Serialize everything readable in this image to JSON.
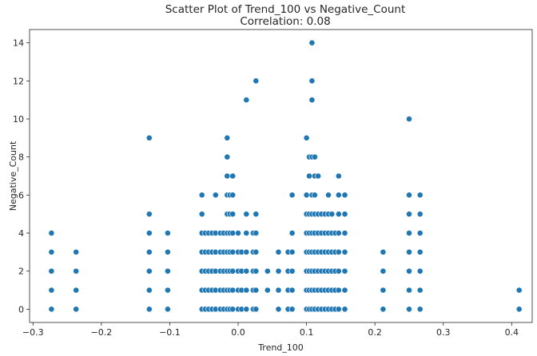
{
  "chart_data": {
    "type": "scatter",
    "title": "Scatter Plot of Trend_100 vs Negative_Count",
    "subtitle": "Correlation: 0.08",
    "xlabel": "Trend_100",
    "ylabel": "Negative_Count",
    "xlim": [
      -0.305,
      0.43
    ],
    "ylim": [
      -0.7,
      14.7
    ],
    "grid": false,
    "x_ticks": [
      {
        "value": -0.3,
        "label": "−0.3"
      },
      {
        "value": -0.2,
        "label": "−0.2"
      },
      {
        "value": -0.1,
        "label": "−0.1"
      },
      {
        "value": 0.0,
        "label": "0.0"
      },
      {
        "value": 0.1,
        "label": "0.1"
      },
      {
        "value": 0.2,
        "label": "0.2"
      },
      {
        "value": 0.3,
        "label": "0.3"
      },
      {
        "value": 0.4,
        "label": "0.4"
      }
    ],
    "y_ticks": [
      0,
      2,
      4,
      6,
      8,
      10,
      12,
      14
    ],
    "marker_color": "#1f77b4",
    "marker_edge": "#ffffff",
    "points": [
      [
        -0.273,
        0
      ],
      [
        -0.273,
        1
      ],
      [
        -0.273,
        2
      ],
      [
        -0.273,
        3
      ],
      [
        -0.273,
        4
      ],
      [
        -0.237,
        0
      ],
      [
        -0.237,
        1
      ],
      [
        -0.237,
        2
      ],
      [
        -0.237,
        3
      ],
      [
        -0.13,
        0
      ],
      [
        -0.13,
        1
      ],
      [
        -0.13,
        2
      ],
      [
        -0.13,
        3
      ],
      [
        -0.13,
        4
      ],
      [
        -0.13,
        5
      ],
      [
        -0.13,
        9
      ],
      [
        -0.103,
        0
      ],
      [
        -0.103,
        1
      ],
      [
        -0.103,
        2
      ],
      [
        -0.103,
        3
      ],
      [
        -0.103,
        4
      ],
      [
        -0.053,
        0
      ],
      [
        -0.053,
        1
      ],
      [
        -0.053,
        2
      ],
      [
        -0.053,
        3
      ],
      [
        -0.053,
        4
      ],
      [
        -0.053,
        5
      ],
      [
        -0.053,
        6
      ],
      [
        -0.048,
        0
      ],
      [
        -0.048,
        1
      ],
      [
        -0.048,
        2
      ],
      [
        -0.048,
        3
      ],
      [
        -0.048,
        4
      ],
      [
        -0.043,
        0
      ],
      [
        -0.043,
        1
      ],
      [
        -0.043,
        2
      ],
      [
        -0.043,
        3
      ],
      [
        -0.043,
        4
      ],
      [
        -0.038,
        0
      ],
      [
        -0.038,
        1
      ],
      [
        -0.038,
        2
      ],
      [
        -0.038,
        3
      ],
      [
        -0.038,
        4
      ],
      [
        -0.033,
        0
      ],
      [
        -0.033,
        1
      ],
      [
        -0.033,
        2
      ],
      [
        -0.033,
        3
      ],
      [
        -0.033,
        4
      ],
      [
        -0.033,
        6
      ],
      [
        -0.026,
        0
      ],
      [
        -0.026,
        1
      ],
      [
        -0.026,
        2
      ],
      [
        -0.026,
        3
      ],
      [
        -0.026,
        4
      ],
      [
        -0.021,
        0
      ],
      [
        -0.021,
        1
      ],
      [
        -0.021,
        2
      ],
      [
        -0.021,
        3
      ],
      [
        -0.021,
        4
      ],
      [
        -0.016,
        0
      ],
      [
        -0.016,
        1
      ],
      [
        -0.016,
        2
      ],
      [
        -0.016,
        3
      ],
      [
        -0.016,
        4
      ],
      [
        -0.016,
        5
      ],
      [
        -0.016,
        6
      ],
      [
        -0.016,
        7
      ],
      [
        -0.016,
        8
      ],
      [
        -0.016,
        9
      ],
      [
        -0.012,
        0
      ],
      [
        -0.012,
        1
      ],
      [
        -0.012,
        2
      ],
      [
        -0.012,
        3
      ],
      [
        -0.012,
        4
      ],
      [
        -0.012,
        5
      ],
      [
        -0.012,
        6
      ],
      [
        -0.008,
        0
      ],
      [
        -0.008,
        1
      ],
      [
        -0.008,
        2
      ],
      [
        -0.008,
        3
      ],
      [
        -0.008,
        4
      ],
      [
        -0.008,
        5
      ],
      [
        -0.008,
        6
      ],
      [
        -0.008,
        7
      ],
      [
        0.0,
        0
      ],
      [
        0.0,
        1
      ],
      [
        0.0,
        2
      ],
      [
        0.0,
        3
      ],
      [
        0.0,
        4
      ],
      [
        0.005,
        0
      ],
      [
        0.005,
        1
      ],
      [
        0.005,
        2
      ],
      [
        0.005,
        3
      ],
      [
        0.012,
        0
      ],
      [
        0.012,
        1
      ],
      [
        0.012,
        2
      ],
      [
        0.012,
        3
      ],
      [
        0.012,
        4
      ],
      [
        0.012,
        5
      ],
      [
        0.012,
        11
      ],
      [
        0.022,
        0
      ],
      [
        0.022,
        1
      ],
      [
        0.022,
        2
      ],
      [
        0.022,
        3
      ],
      [
        0.022,
        4
      ],
      [
        0.026,
        0
      ],
      [
        0.026,
        1
      ],
      [
        0.026,
        2
      ],
      [
        0.026,
        3
      ],
      [
        0.026,
        4
      ],
      [
        0.026,
        5
      ],
      [
        0.026,
        12
      ],
      [
        0.043,
        1
      ],
      [
        0.043,
        2
      ],
      [
        0.059,
        0
      ],
      [
        0.059,
        1
      ],
      [
        0.059,
        2
      ],
      [
        0.059,
        3
      ],
      [
        0.073,
        0
      ],
      [
        0.073,
        1
      ],
      [
        0.073,
        2
      ],
      [
        0.073,
        3
      ],
      [
        0.079,
        0
      ],
      [
        0.079,
        1
      ],
      [
        0.079,
        2
      ],
      [
        0.079,
        3
      ],
      [
        0.079,
        4
      ],
      [
        0.079,
        6
      ],
      [
        0.1,
        0
      ],
      [
        0.1,
        1
      ],
      [
        0.1,
        2
      ],
      [
        0.1,
        3
      ],
      [
        0.1,
        4
      ],
      [
        0.1,
        5
      ],
      [
        0.1,
        6
      ],
      [
        0.1,
        9
      ],
      [
        0.104,
        0
      ],
      [
        0.104,
        1
      ],
      [
        0.104,
        2
      ],
      [
        0.104,
        3
      ],
      [
        0.104,
        4
      ],
      [
        0.104,
        5
      ],
      [
        0.104,
        7
      ],
      [
        0.104,
        8
      ],
      [
        0.108,
        0
      ],
      [
        0.108,
        1
      ],
      [
        0.108,
        2
      ],
      [
        0.108,
        3
      ],
      [
        0.108,
        4
      ],
      [
        0.108,
        5
      ],
      [
        0.108,
        6
      ],
      [
        0.108,
        8
      ],
      [
        0.108,
        11
      ],
      [
        0.108,
        12
      ],
      [
        0.108,
        14
      ],
      [
        0.112,
        0
      ],
      [
        0.112,
        1
      ],
      [
        0.112,
        2
      ],
      [
        0.112,
        3
      ],
      [
        0.112,
        4
      ],
      [
        0.112,
        5
      ],
      [
        0.112,
        6
      ],
      [
        0.112,
        7
      ],
      [
        0.112,
        8
      ],
      [
        0.117,
        0
      ],
      [
        0.117,
        1
      ],
      [
        0.117,
        2
      ],
      [
        0.117,
        3
      ],
      [
        0.117,
        4
      ],
      [
        0.117,
        5
      ],
      [
        0.117,
        7
      ],
      [
        0.122,
        0
      ],
      [
        0.122,
        1
      ],
      [
        0.122,
        2
      ],
      [
        0.122,
        3
      ],
      [
        0.122,
        4
      ],
      [
        0.122,
        5
      ],
      [
        0.127,
        0
      ],
      [
        0.127,
        1
      ],
      [
        0.127,
        2
      ],
      [
        0.127,
        3
      ],
      [
        0.127,
        4
      ],
      [
        0.127,
        5
      ],
      [
        0.132,
        0
      ],
      [
        0.132,
        1
      ],
      [
        0.132,
        2
      ],
      [
        0.132,
        3
      ],
      [
        0.132,
        4
      ],
      [
        0.132,
        5
      ],
      [
        0.132,
        6
      ],
      [
        0.137,
        0
      ],
      [
        0.137,
        1
      ],
      [
        0.137,
        2
      ],
      [
        0.137,
        3
      ],
      [
        0.137,
        4
      ],
      [
        0.137,
        5
      ],
      [
        0.142,
        0
      ],
      [
        0.142,
        1
      ],
      [
        0.142,
        2
      ],
      [
        0.142,
        3
      ],
      [
        0.142,
        4
      ],
      [
        0.147,
        0
      ],
      [
        0.147,
        1
      ],
      [
        0.147,
        2
      ],
      [
        0.147,
        3
      ],
      [
        0.147,
        4
      ],
      [
        0.147,
        5
      ],
      [
        0.147,
        6
      ],
      [
        0.147,
        7
      ],
      [
        0.156,
        0
      ],
      [
        0.156,
        1
      ],
      [
        0.156,
        2
      ],
      [
        0.156,
        3
      ],
      [
        0.156,
        4
      ],
      [
        0.156,
        5
      ],
      [
        0.156,
        6
      ],
      [
        0.212,
        0
      ],
      [
        0.212,
        1
      ],
      [
        0.212,
        2
      ],
      [
        0.212,
        3
      ],
      [
        0.25,
        0
      ],
      [
        0.25,
        1
      ],
      [
        0.25,
        2
      ],
      [
        0.25,
        3
      ],
      [
        0.25,
        4
      ],
      [
        0.25,
        5
      ],
      [
        0.25,
        6
      ],
      [
        0.25,
        10
      ],
      [
        0.266,
        0
      ],
      [
        0.266,
        1
      ],
      [
        0.266,
        2
      ],
      [
        0.266,
        3
      ],
      [
        0.266,
        4
      ],
      [
        0.266,
        5
      ],
      [
        0.266,
        6
      ],
      [
        0.411,
        0
      ],
      [
        0.411,
        1
      ]
    ]
  }
}
